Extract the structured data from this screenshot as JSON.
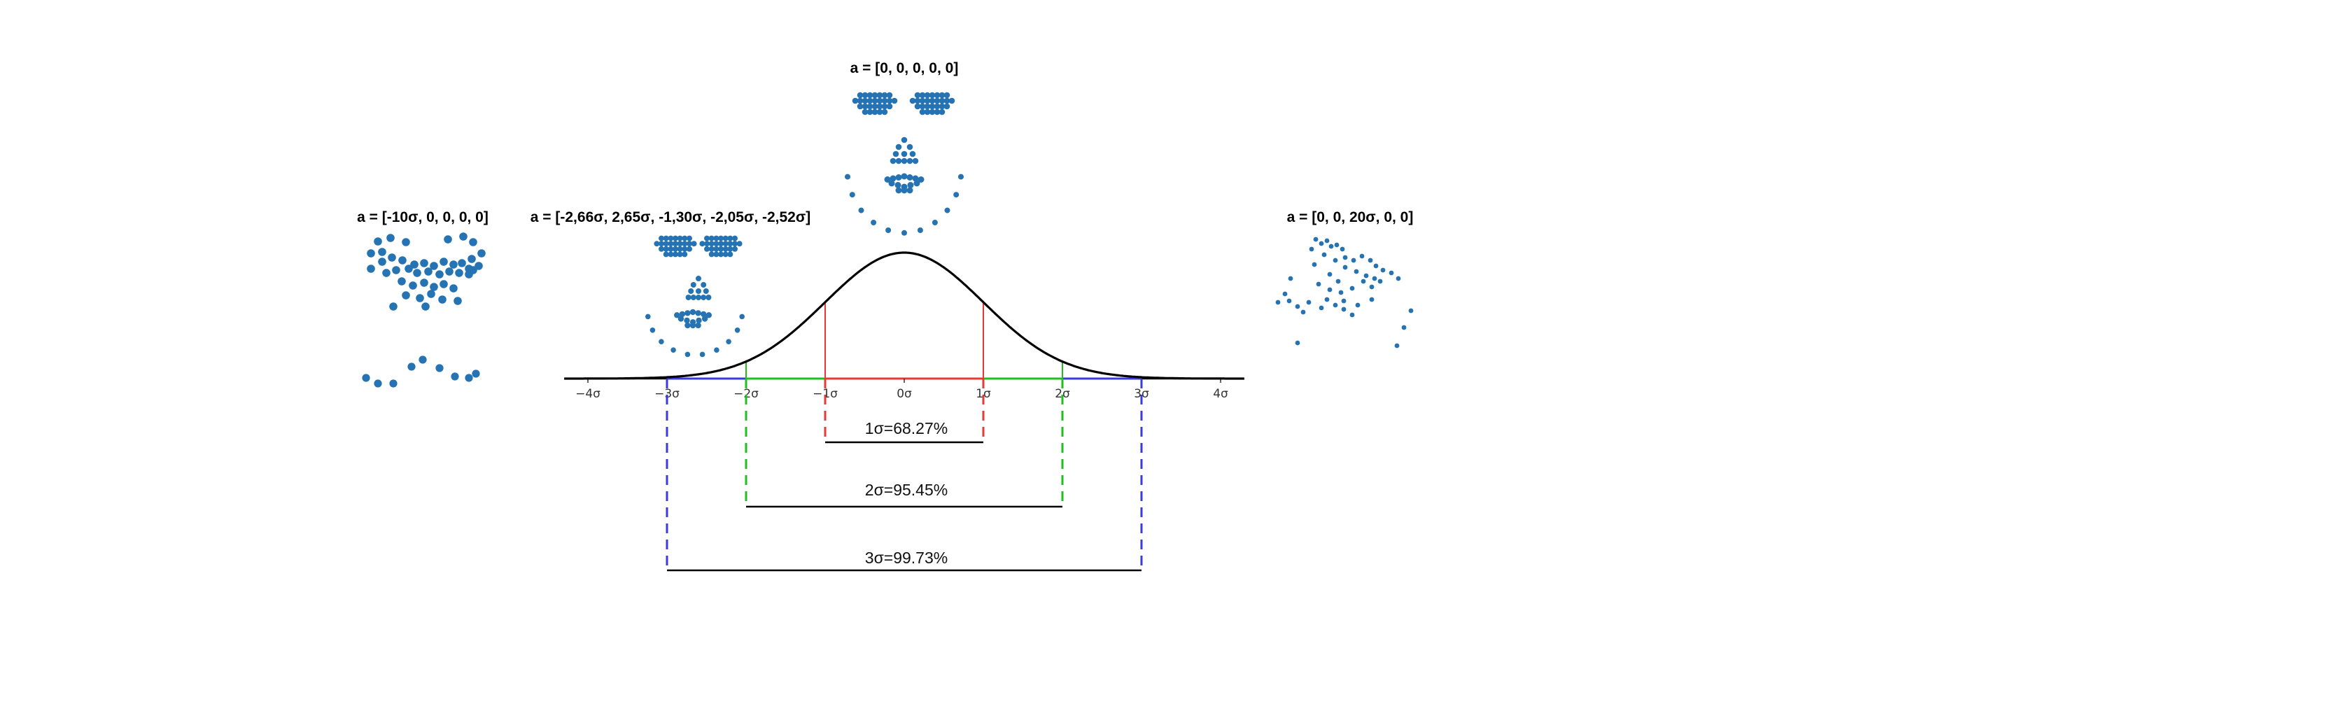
{
  "figure": {
    "panels": [
      {
        "id": "neg10",
        "caption": "a = [-10σ, 0, 0, 0, 0]"
      },
      {
        "id": "mixed",
        "caption": "a = [-2,66σ, 2,65σ, -1,30σ, -2,05σ, -2,52σ]"
      },
      {
        "id": "mean",
        "caption": "a = [0, 0, 0, 0, 0]"
      },
      {
        "id": "pos20",
        "caption": "a = [0, 0, 20σ, 0, 0]"
      }
    ],
    "axis": {
      "ticks": [
        "−4σ",
        "−3σ",
        "−2σ",
        "−1σ",
        "0σ",
        "1σ",
        "2σ",
        "3σ",
        "4σ"
      ]
    },
    "intervals": [
      {
        "k": 1,
        "label": "1σ=68.27%",
        "color": "#e53935"
      },
      {
        "k": 2,
        "label": "2σ=95.45%",
        "color": "#1fbf1f"
      },
      {
        "k": 3,
        "label": "3σ=99.73%",
        "color": "#3a3adf"
      }
    ],
    "colors": {
      "curve": "#000000",
      "points": "#2573b2",
      "axis_one": "#e53935",
      "axis_two": "#1fbf1f",
      "axis_three": "#3a3adf"
    }
  }
}
